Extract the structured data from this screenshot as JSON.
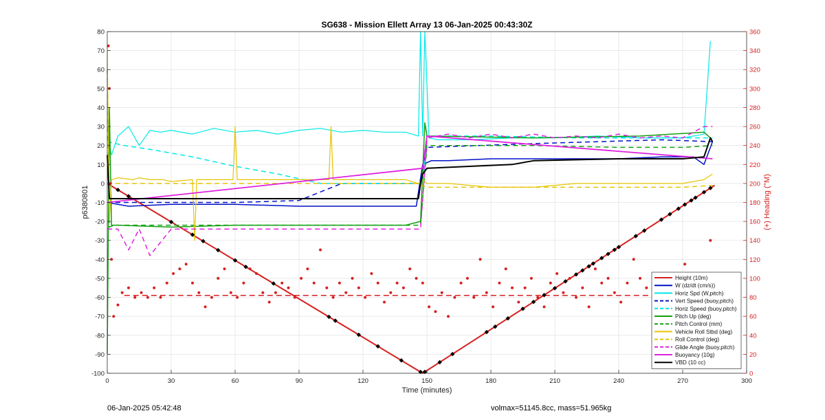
{
  "chart_data": {
    "type": "line",
    "title": "SG638 - Mission Ellett Array 13 06-Jan-2025 00:43:30Z",
    "xlabel": "Time (minutes)",
    "ylabel": "p6380801",
    "y2label": "(+) Heading (°M)",
    "xlim": [
      0,
      300
    ],
    "ylim": [
      -100,
      80
    ],
    "y2lim": [
      0,
      360
    ],
    "xticks": [
      0,
      30,
      60,
      90,
      120,
      150,
      180,
      210,
      240,
      270,
      300
    ],
    "yticks": [
      -100,
      -90,
      -80,
      -70,
      -60,
      -50,
      -40,
      -30,
      -20,
      -10,
      0,
      10,
      20,
      30,
      40,
      50,
      60,
      70,
      80
    ],
    "y2ticks": [
      0,
      20,
      40,
      60,
      80,
      100,
      120,
      140,
      160,
      180,
      200,
      220,
      240,
      260,
      280,
      300,
      320,
      340,
      360
    ],
    "grid": true,
    "legend_position": "bottom-right",
    "colors": {
      "red": "#d62020",
      "blue": "#0010c8",
      "cyan": "#00e8e8",
      "green": "#10a010",
      "yellow": "#e6c400",
      "magenta": "#e020e0",
      "black": "#000000"
    },
    "series": [
      {
        "name": "Height (10m)",
        "color": "#d62020",
        "style": "solid",
        "width": 2,
        "x": [
          0,
          148,
          285
        ],
        "y": [
          0,
          -100,
          -1
        ]
      },
      {
        "name": "W (dz/dt (cm/s))",
        "color": "#0010c8",
        "style": "solid",
        "width": 1.5,
        "x": [
          0,
          10,
          30,
          60,
          90,
          120,
          145,
          148,
          152,
          160,
          180,
          200,
          220,
          240,
          260,
          275,
          280,
          284
        ],
        "y": [
          -10,
          -12,
          -11,
          -11,
          -12,
          -12,
          -12,
          10,
          12,
          12,
          13,
          13,
          13,
          13,
          14,
          14,
          10,
          22
        ]
      },
      {
        "name": "Horiz Spd (W,pitch)",
        "color": "#00e8e8",
        "style": "solid",
        "width": 1.2,
        "x": [
          0,
          2,
          5,
          10,
          15,
          20,
          25,
          30,
          40,
          50,
          60,
          70,
          80,
          90,
          100,
          110,
          120,
          130,
          140,
          146,
          147,
          148,
          149,
          151,
          155,
          170,
          190,
          210,
          230,
          250,
          270,
          280,
          283
        ],
        "y": [
          25,
          15,
          25,
          30,
          20,
          28,
          27,
          28,
          26,
          29,
          27,
          28,
          26,
          28,
          29,
          27,
          28,
          27,
          27,
          25,
          80,
          25,
          80,
          24,
          23,
          23,
          24,
          24,
          25,
          24,
          24,
          26,
          75
        ]
      },
      {
        "name": "Vert Speed (buoy,pitch)",
        "color": "#0010c8",
        "style": "dashed",
        "width": 1.5,
        "x": [
          0,
          5,
          60,
          90,
          110,
          147,
          150,
          200,
          260,
          284
        ],
        "y": [
          -10,
          -10,
          -10,
          -9,
          0,
          0,
          19,
          21,
          23,
          22
        ]
      },
      {
        "name": "Horiz Speed (buoy,pitch)",
        "color": "#00e8e8",
        "style": "dashed",
        "width": 1.5,
        "x": [
          0,
          8,
          20,
          40,
          60,
          80,
          100,
          148,
          150,
          180,
          220,
          260,
          284
        ],
        "y": [
          22,
          20,
          18,
          14,
          9,
          5,
          0,
          0,
          25,
          25,
          24,
          24,
          24
        ]
      },
      {
        "name": "Pitch Up (deg)",
        "color": "#10a010",
        "style": "solid",
        "width": 1.5,
        "x": [
          0,
          1,
          2,
          5,
          30,
          60,
          100,
          140,
          147,
          149,
          150,
          200,
          250,
          280,
          283
        ],
        "y": [
          -90,
          40,
          -22,
          -22,
          -23,
          -22,
          -22,
          -22,
          -20,
          32,
          25,
          24,
          25,
          27,
          24
        ]
      },
      {
        "name": "Pitch Control (mm)",
        "color": "#10a010",
        "style": "dashed",
        "width": 1.5,
        "x": [
          0,
          1,
          3,
          50,
          100,
          147,
          150,
          200,
          240,
          270,
          284
        ],
        "y": [
          60,
          -23,
          -22,
          -22,
          -22,
          -22,
          20,
          20,
          19,
          19,
          20
        ]
      },
      {
        "name": "Vehicle Roll Stbd (deg)",
        "color": "#e6c400",
        "style": "solid",
        "width": 1.2,
        "x": [
          0,
          1,
          2,
          5,
          12,
          15,
          20,
          26,
          30,
          40,
          41,
          42,
          55,
          59,
          60,
          61,
          70,
          80,
          100,
          104,
          105,
          106,
          120,
          140,
          146,
          148,
          150,
          160,
          180,
          200,
          220,
          240,
          255,
          270,
          280,
          284
        ],
        "y": [
          70,
          -20,
          2,
          3,
          2,
          3,
          2,
          2,
          1,
          2,
          -30,
          2,
          2,
          2,
          30,
          2,
          2,
          2,
          2,
          2,
          30,
          2,
          2,
          2,
          0,
          2,
          0,
          0,
          -2,
          -2,
          0,
          0,
          0,
          0,
          2,
          5
        ]
      },
      {
        "name": "Roll Control (deg)",
        "color": "#e6c400",
        "style": "dashed",
        "width": 1.5,
        "x": [
          0,
          2,
          10,
          30,
          60,
          90,
          120,
          145,
          150,
          160,
          200,
          240,
          270,
          284
        ],
        "y": [
          0,
          0,
          0,
          0,
          0,
          0,
          0,
          0,
          -2,
          -2,
          -2,
          -2,
          -2,
          -1
        ]
      },
      {
        "name": "Glide Angle (buoy,pitch)",
        "color": "#e020e0",
        "style": "dashed",
        "width": 1.5,
        "x": [
          0,
          5,
          10,
          15,
          20,
          30,
          60,
          100,
          147,
          150,
          160,
          170,
          180,
          190,
          200,
          210,
          220,
          230,
          240,
          250,
          260,
          270,
          280,
          284
        ],
        "y": [
          -24,
          -24,
          -35,
          -24,
          -38,
          -24,
          -24,
          -24,
          -24,
          24,
          26,
          24,
          26,
          24,
          26,
          24,
          25,
          24,
          26,
          24,
          25,
          24,
          30,
          30
        ]
      },
      {
        "name": "Buoyancy (10g)",
        "color": "#e020e0",
        "style": "solid",
        "width": 1.8,
        "x": [
          0,
          148,
          150,
          284
        ],
        "y": [
          -10,
          8,
          25,
          13
        ]
      },
      {
        "name": "VBD (10 cc)",
        "color": "#000000",
        "style": "solid",
        "width": 2,
        "x": [
          0,
          1,
          2,
          5,
          146,
          147,
          148,
          150,
          190,
          200,
          240,
          270,
          280,
          283,
          284
        ],
        "y": [
          15,
          -8,
          -8,
          -8,
          -8,
          0,
          5,
          8,
          10,
          12,
          13,
          13,
          14,
          24,
          22
        ]
      }
    ],
    "heading": {
      "name": "Heading points",
      "color": "#d62020",
      "x": [
        0.5,
        1,
        1.5,
        2,
        3,
        5,
        7,
        10,
        13,
        16,
        19,
        22,
        25,
        28,
        31,
        34,
        37,
        40,
        43,
        46,
        49,
        52,
        55,
        58,
        61,
        64,
        67,
        70,
        73,
        76,
        79,
        82,
        85,
        88,
        91,
        94,
        97,
        100,
        103,
        106,
        109,
        112,
        115,
        118,
        121,
        124,
        127,
        130,
        133,
        136,
        139,
        142,
        145,
        148,
        151,
        154,
        157,
        160,
        163,
        166,
        169,
        172,
        175,
        178,
        181,
        184,
        187,
        190,
        193,
        196,
        199,
        202,
        205,
        208,
        211,
        214,
        217,
        220,
        223,
        226,
        229,
        232,
        235,
        238,
        241,
        244,
        247,
        250,
        253,
        256,
        259,
        262,
        265,
        268,
        271,
        274,
        277,
        280,
        283
      ],
      "y": [
        345,
        300,
        200,
        120,
        60,
        72,
        85,
        90,
        80,
        85,
        80,
        90,
        80,
        95,
        105,
        110,
        115,
        95,
        85,
        70,
        80,
        100,
        110,
        85,
        80,
        95,
        110,
        105,
        85,
        75,
        85,
        95,
        90,
        80,
        100,
        110,
        95,
        130,
        90,
        80,
        95,
        85,
        100,
        90,
        80,
        105,
        95,
        75,
        85,
        95,
        90,
        110,
        100,
        95,
        70,
        65,
        85,
        60,
        80,
        95,
        100,
        80,
        120,
        85,
        70,
        95,
        110,
        90,
        75,
        90,
        100,
        80,
        70,
        95,
        105,
        85,
        100,
        80,
        90,
        70,
        110,
        95,
        100,
        85,
        75,
        95,
        120,
        100,
        90,
        80,
        95,
        100,
        85,
        80,
        115,
        90,
        100,
        95,
        140
      ]
    },
    "heading_ref": {
      "name": "Heading target",
      "color": "#d62020",
      "style": "dashed",
      "y2": 82
    },
    "markers": {
      "name": "Height markers",
      "color": "#000000",
      "x": [
        5,
        10,
        30,
        40,
        45,
        52,
        60,
        65,
        78,
        104,
        107,
        118,
        127,
        138,
        147,
        149,
        156,
        162,
        178,
        182,
        188,
        195,
        200,
        205,
        210,
        215,
        220,
        223,
        226,
        228,
        232,
        235,
        238,
        240,
        248,
        252,
        260,
        264,
        268,
        271,
        274,
        276,
        280,
        283
      ]
    }
  },
  "footer": {
    "left": "06-Jan-2025 05:42:48",
    "right": "volmax=51145.8cc, mass=51.965kg"
  }
}
